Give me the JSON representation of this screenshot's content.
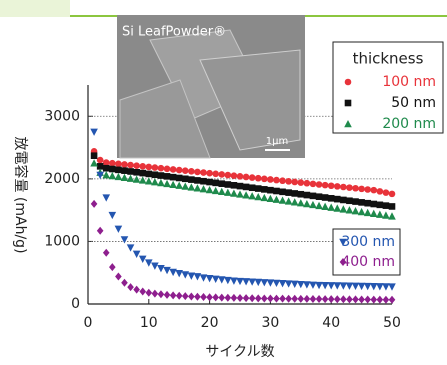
{
  "chart_data": {
    "type": "scatter",
    "x_label": "サイクル数",
    "y_label": "放電容量 (mAh/g)",
    "inset_label": "Si LeafPowder®",
    "inset_scale": "1μm",
    "legend_title": "thickness",
    "xlim": [
      0,
      50
    ],
    "xticks": [
      0,
      10,
      20,
      30,
      40,
      50
    ],
    "ylim": [
      0,
      3500
    ],
    "yticks": [
      0,
      1000,
      2000,
      3000
    ],
    "grid": true,
    "x": [
      1,
      2,
      3,
      4,
      5,
      6,
      7,
      8,
      9,
      10,
      11,
      12,
      13,
      14,
      15,
      16,
      17,
      18,
      19,
      20,
      21,
      22,
      23,
      24,
      25,
      26,
      27,
      28,
      29,
      30,
      31,
      32,
      33,
      34,
      35,
      36,
      37,
      38,
      39,
      40,
      41,
      42,
      43,
      44,
      45,
      46,
      47,
      48,
      49,
      50
    ],
    "series": [
      {
        "name": "100 nm",
        "color": "#e8333a",
        "marker": "circle",
        "values": [
          2440,
          2300,
          2260,
          2250,
          2240,
          2230,
          2220,
          2210,
          2200,
          2190,
          2180,
          2170,
          2160,
          2150,
          2140,
          2130,
          2120,
          2110,
          2100,
          2090,
          2080,
          2070,
          2060,
          2050,
          2040,
          2030,
          2020,
          2010,
          2000,
          1990,
          1980,
          1970,
          1960,
          1950,
          1940,
          1930,
          1920,
          1910,
          1900,
          1890,
          1880,
          1870,
          1860,
          1850,
          1840,
          1830,
          1820,
          1800,
          1780,
          1760
        ]
      },
      {
        "name": "50 nm",
        "color": "#111111",
        "marker": "square",
        "values": [
          2370,
          2200,
          2170,
          2157,
          2144,
          2131,
          2118,
          2105,
          2092,
          2079,
          2066,
          2053,
          2040,
          2027,
          2014,
          2001,
          1988,
          1975,
          1962,
          1949,
          1936,
          1923,
          1910,
          1897,
          1884,
          1871,
          1858,
          1845,
          1832,
          1819,
          1806,
          1793,
          1780,
          1767,
          1754,
          1741,
          1728,
          1715,
          1702,
          1689,
          1676,
          1663,
          1650,
          1637,
          1624,
          1611,
          1598,
          1585,
          1572,
          1559
        ]
      },
      {
        "name": "200 nm",
        "color": "#1f8a4c",
        "marker": "triangle-up",
        "values": [
          2250,
          2100,
          2060,
          2046,
          2032,
          2018,
          2004,
          1990,
          1976,
          1962,
          1948,
          1934,
          1920,
          1906,
          1892,
          1878,
          1864,
          1850,
          1836,
          1822,
          1808,
          1794,
          1780,
          1766,
          1752,
          1738,
          1724,
          1710,
          1696,
          1682,
          1668,
          1654,
          1640,
          1626,
          1612,
          1598,
          1584,
          1570,
          1556,
          1542,
          1528,
          1514,
          1500,
          1486,
          1472,
          1458,
          1444,
          1430,
          1416,
          1402
        ]
      },
      {
        "name": "300 nm",
        "color": "#2456b0",
        "marker": "triangle-down",
        "values": [
          2750,
          2060,
          1700,
          1420,
          1200,
          1030,
          900,
          800,
          720,
          660,
          610,
          570,
          540,
          510,
          490,
          470,
          450,
          440,
          420,
          410,
          400,
          390,
          380,
          370,
          365,
          360,
          355,
          350,
          345,
          340,
          335,
          330,
          325,
          320,
          315,
          310,
          305,
          300,
          298,
          296,
          294,
          292,
          290,
          288,
          286,
          284,
          282,
          280,
          278,
          276
        ]
      },
      {
        "name": "400 nm",
        "color": "#8e1f8e",
        "marker": "diamond",
        "values": [
          1600,
          1170,
          820,
          590,
          440,
          340,
          270,
          230,
          200,
          180,
          165,
          155,
          145,
          138,
          132,
          126,
          120,
          116,
          112,
          108,
          105,
          102,
          100,
          98,
          96,
          94,
          92,
          90,
          88,
          87,
          86,
          85,
          84,
          83,
          82,
          81,
          80,
          79,
          78,
          77,
          76,
          75,
          74,
          73,
          72,
          71,
          70,
          69,
          68,
          67
        ]
      }
    ]
  }
}
